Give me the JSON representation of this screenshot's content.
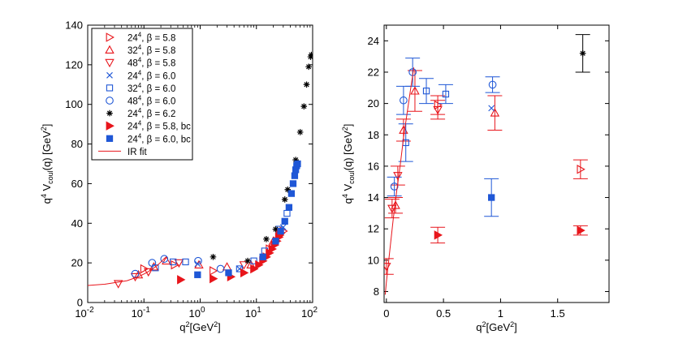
{
  "chart_data": [
    {
      "type": "scatter",
      "title": "",
      "xlabel": "q²[GeV²]",
      "ylabel": "q⁴ V_coul(q) [GeV²]",
      "xscale": "log",
      "xlim": [
        0.01,
        100
      ],
      "ylim": [
        0,
        140
      ],
      "xticks": [
        {
          "v": 0.01,
          "base": "10",
          "exp": "-2"
        },
        {
          "v": 0.1,
          "base": "10",
          "exp": "-1"
        },
        {
          "v": 1,
          "base": "10",
          "exp": "0"
        },
        {
          "v": 10,
          "base": "10",
          "exp": "1"
        },
        {
          "v": 100,
          "base": "10",
          "exp": "2"
        }
      ],
      "yticks": [
        "0",
        "20",
        "40",
        "60",
        "80",
        "100",
        "120",
        "140"
      ],
      "legend_position": "top-left",
      "series": [
        {
          "name": "24^4, β = 5.8",
          "legend": {
            "main": "24",
            "sup": "4",
            "rest": ", β = 5.8"
          },
          "marker": "triangle-right-open",
          "color": "#e8151b",
          "points": [
            [
              0.1,
              17
            ],
            [
              0.35,
              19
            ],
            [
              1.7,
              16
            ],
            [
              17,
              27
            ],
            [
              25,
              33
            ],
            [
              30,
              36
            ]
          ]
        },
        {
          "name": "32^4, β = 5.8",
          "legend": {
            "main": "32",
            "sup": "4",
            "rest": ", β = 5.8"
          },
          "marker": "triangle-up-open",
          "color": "#e8151b",
          "points": [
            [
              0.08,
              14
            ],
            [
              0.15,
              18
            ],
            [
              0.25,
              21
            ],
            [
              0.95,
              19
            ],
            [
              3,
              18
            ],
            [
              8,
              19
            ],
            [
              20,
              31
            ]
          ]
        },
        {
          "name": "48^4, β = 5.8",
          "legend": {
            "main": "48",
            "sup": "4",
            "rest": ", β = 5.8"
          },
          "marker": "triangle-down-open",
          "color": "#e8151b",
          "points": [
            [
              0.035,
              9.5
            ],
            [
              0.07,
              13
            ],
            [
              0.12,
              15.5
            ],
            [
              0.42,
              20
            ],
            [
              6,
              19
            ]
          ]
        },
        {
          "name": "24^4, β = 6.0",
          "legend": {
            "main": "24",
            "sup": "4",
            "rest": ", β = 6.0"
          },
          "marker": "cross",
          "color": "#1f57d6",
          "points": [
            [
              0.9,
              19.5
            ],
            [
              5,
              17
            ],
            [
              30,
              38
            ]
          ]
        },
        {
          "name": "32^4, β = 6.0",
          "legend": {
            "main": "32",
            "sup": "4",
            "rest": ", β = 6.0"
          },
          "marker": "square-open",
          "color": "#1f57d6",
          "points": [
            [
              0.16,
              17.5
            ],
            [
              0.33,
              20.5
            ],
            [
              0.55,
              20.5
            ],
            [
              5,
              17
            ],
            [
              9,
              21
            ],
            [
              14,
              26
            ],
            [
              25,
              37
            ],
            [
              35,
              45
            ]
          ]
        },
        {
          "name": "48^4, β = 6.0",
          "legend": {
            "main": "48",
            "sup": "4",
            "rest": ", β = 6.0"
          },
          "marker": "circle-open",
          "color": "#1f57d6",
          "points": [
            [
              0.07,
              14.5
            ],
            [
              0.14,
              20
            ],
            [
              0.23,
              22
            ],
            [
              0.92,
              21
            ],
            [
              2.3,
              17
            ]
          ]
        },
        {
          "name": "24^4, β = 6.2",
          "legend": {
            "main": "24",
            "sup": "4",
            "rest": ", β = 6.2"
          },
          "marker": "asterisk",
          "color": "#000000",
          "points": [
            [
              1.7,
              23
            ],
            [
              7,
              21
            ],
            [
              15,
              32
            ],
            [
              22,
              37
            ],
            [
              32,
              52
            ],
            [
              36,
              57
            ],
            [
              50,
              72
            ],
            [
              60,
              86
            ],
            [
              70,
              99
            ],
            [
              78,
              110
            ],
            [
              85,
              119
            ],
            [
              92,
              124
            ],
            [
              95,
              125
            ]
          ]
        },
        {
          "name": "24^4, β = 5.8, bc",
          "legend": {
            "main": "24",
            "sup": "4",
            "rest": ", β = 5.8, bc"
          },
          "marker": "triangle-right-filled",
          "color": "#e8151b",
          "points": [
            [
              0.45,
              11.5
            ],
            [
              1.7,
              12
            ],
            [
              3.5,
              13
            ],
            [
              6,
              15
            ],
            [
              9,
              17
            ],
            [
              11,
              19
            ],
            [
              13,
              21
            ],
            [
              15,
              23
            ],
            [
              17,
              25
            ],
            [
              19,
              27
            ],
            [
              21,
              29
            ],
            [
              23,
              31
            ],
            [
              25,
              33
            ],
            [
              26,
              34
            ],
            [
              27,
              35
            ]
          ]
        },
        {
          "name": "24^4, β = 6.0, bc",
          "legend": {
            "main": "24",
            "sup": "4",
            "rest": ", β = 6.0, bc"
          },
          "marker": "square-filled",
          "color": "#1f57d6",
          "points": [
            [
              0.9,
              14
            ],
            [
              3.2,
              15
            ],
            [
              13,
              23
            ],
            [
              22,
              31
            ],
            [
              27,
              36
            ],
            [
              32,
              41
            ],
            [
              38,
              48
            ],
            [
              42,
              55
            ],
            [
              45,
              60
            ],
            [
              48,
              64
            ],
            [
              50,
              67
            ],
            [
              52,
              69
            ],
            [
              54,
              70
            ]
          ]
        },
        {
          "name": "IR fit",
          "legend": {
            "main": "IR fit",
            "sup": "",
            "rest": ""
          },
          "marker": "line",
          "color": "#e8151b",
          "line": [
            [
              0.01,
              8.6
            ],
            [
              0.02,
              9.2
            ],
            [
              0.05,
              11.0
            ],
            [
              0.08,
              13.0
            ],
            [
              0.11,
              15.0
            ],
            [
              0.14,
              16.8
            ],
            [
              0.17,
              18.6
            ],
            [
              0.2,
              20.4
            ],
            [
              0.23,
              22.2
            ],
            [
              0.25,
              23.0
            ]
          ]
        }
      ]
    },
    {
      "type": "scatter",
      "title": "",
      "xlabel": "q²[GeV²]",
      "ylabel": "q⁴ V_coul(q) [GeV²]",
      "xscale": "linear",
      "xlim": [
        -0.02,
        1.95
      ],
      "ylim": [
        7.3,
        25
      ],
      "xticks": [
        {
          "v": 0,
          "label": "0"
        },
        {
          "v": 0.5,
          "label": "0.5"
        },
        {
          "v": 1,
          "label": "1"
        },
        {
          "v": 1.5,
          "label": "1.5"
        }
      ],
      "yticks": [
        8,
        10,
        12,
        14,
        16,
        18,
        20,
        22,
        24
      ],
      "series": [
        {
          "name": "24^4, β = 5.8",
          "marker": "triangle-right-open",
          "color": "#e8151b",
          "points": [
            [
              0.45,
              19.9,
              0.6
            ],
            [
              1.7,
              15.8,
              0.6
            ]
          ]
        },
        {
          "name": "32^4, β = 5.8",
          "marker": "triangle-up-open",
          "color": "#e8151b",
          "points": [
            [
              0.08,
              13.5,
              0.5
            ],
            [
              0.15,
              18.3,
              0.7
            ],
            [
              0.25,
              20.8,
              1.3
            ],
            [
              0.95,
              19.4,
              1.1
            ]
          ]
        },
        {
          "name": "48^4, β = 5.8",
          "marker": "triangle-down-open",
          "color": "#e8151b",
          "points": [
            [
              0.0,
              9.6,
              0.5
            ],
            [
              0.05,
              13.3,
              0.6
            ],
            [
              0.1,
              15.4,
              0.6
            ],
            [
              0.45,
              19.6,
              0.6
            ]
          ]
        },
        {
          "name": "24^4, β = 6.0",
          "marker": "cross",
          "color": "#1f57d6",
          "points": [
            [
              0.92,
              19.7,
              0.0
            ]
          ]
        },
        {
          "name": "32^4, β = 6.0",
          "marker": "square-open",
          "color": "#1f57d6",
          "points": [
            [
              0.17,
              17.5,
              1.2
            ],
            [
              0.35,
              20.8,
              0.8
            ],
            [
              0.52,
              20.6,
              0.6
            ]
          ]
        },
        {
          "name": "48^4, β = 6.0",
          "marker": "circle-open",
          "color": "#1f57d6",
          "points": [
            [
              0.07,
              14.7,
              0.6
            ],
            [
              0.15,
              20.2,
              0.9
            ],
            [
              0.23,
              22.0,
              0.9
            ],
            [
              0.93,
              21.2,
              0.5
            ]
          ]
        },
        {
          "name": "24^4, β = 6.2",
          "marker": "asterisk",
          "color": "#000000",
          "points": [
            [
              1.72,
              23.2,
              1.2
            ]
          ]
        },
        {
          "name": "24^4, β = 5.8, bc",
          "marker": "triangle-right-filled",
          "color": "#e8151b",
          "points": [
            [
              0.45,
              11.6,
              0.5
            ],
            [
              1.7,
              11.9,
              0.3
            ]
          ]
        },
        {
          "name": "24^4, β = 6.0, bc",
          "marker": "square-filled",
          "color": "#1f57d6",
          "points": [
            [
              0.92,
              14.0,
              1.2
            ]
          ]
        },
        {
          "name": "IR fit",
          "marker": "line",
          "color": "#e8151b",
          "line": [
            [
              -0.01,
              7.8
            ],
            [
              0.0,
              8.6
            ],
            [
              0.03,
              10.6
            ],
            [
              0.06,
              12.6
            ],
            [
              0.09,
              14.4
            ],
            [
              0.12,
              16.0
            ],
            [
              0.15,
              17.8
            ],
            [
              0.18,
              19.3
            ],
            [
              0.21,
              20.8
            ],
            [
              0.24,
              22.3
            ]
          ]
        }
      ]
    }
  ]
}
